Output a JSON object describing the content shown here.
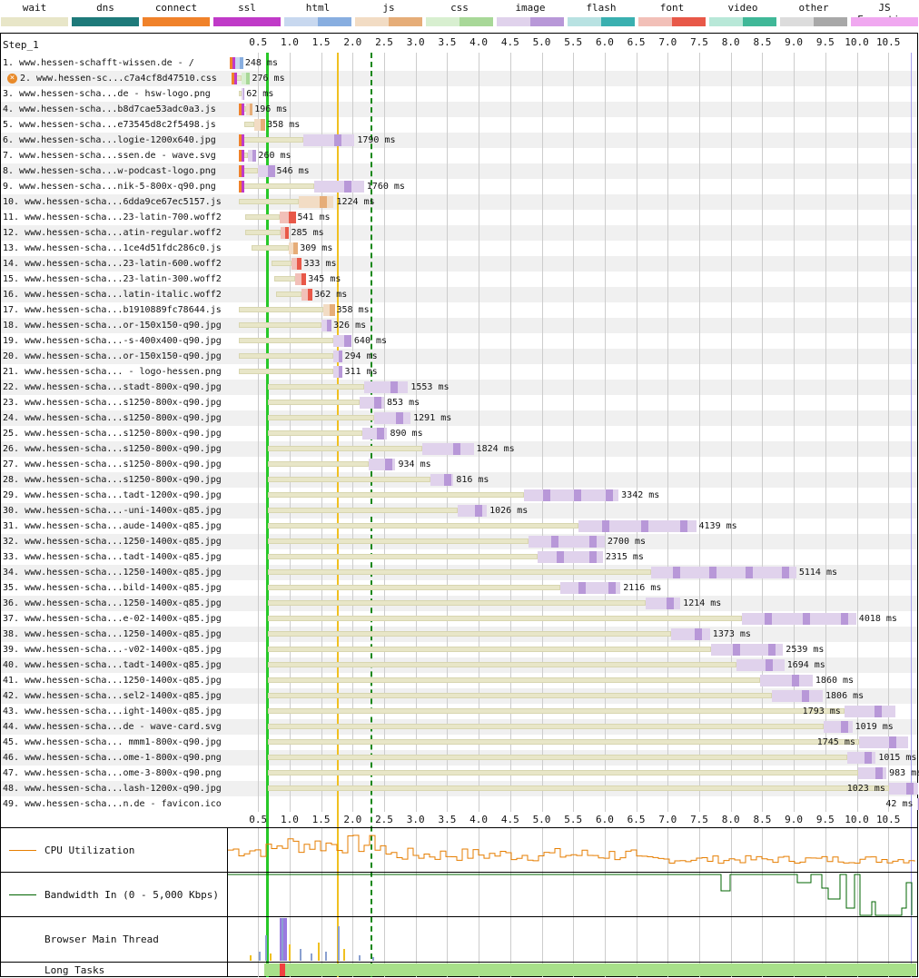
{
  "legend": [
    {
      "label": "wait",
      "color": "#e8e6c8",
      "color2": "#e8e6c8"
    },
    {
      "label": "dns",
      "color": "#1e7a7a",
      "color2": "#1e7a7a"
    },
    {
      "label": "connect",
      "color": "#f0822a",
      "color2": "#f0822a"
    },
    {
      "label": "ssl",
      "color": "#c03ac8",
      "color2": "#c03ac8"
    },
    {
      "label": "html",
      "color": "#c8d8ef",
      "color2": "#88aee0"
    },
    {
      "label": "js",
      "color": "#f2dcc4",
      "color2": "#e6ad78"
    },
    {
      "label": "css",
      "color": "#d8efd0",
      "color2": "#a8d898"
    },
    {
      "label": "image",
      "color": "#e0d2ec",
      "color2": "#b898d8"
    },
    {
      "label": "flash",
      "color": "#b8e2e2",
      "color2": "#3ab0b0"
    },
    {
      "label": "font",
      "color": "#f2c0b8",
      "color2": "#e85848"
    },
    {
      "label": "video",
      "color": "#b8e8d8",
      "color2": "#40b898"
    },
    {
      "label": "other",
      "color": "#dcdcdc",
      "color2": "#a8a8a8"
    },
    {
      "label": "JS Execution",
      "color": "#f0a8f0",
      "color2": "#f0a8f0"
    }
  ],
  "step_label": "Step_1",
  "ticks": [
    "0.5",
    "1.0",
    "1.5",
    "2.0",
    "2.5",
    "3.0",
    "3.5",
    "4.0",
    "4.5",
    "5.0",
    "5.5",
    "6.0",
    "6.5",
    "7.0",
    "7.5",
    "8.0",
    "8.5",
    "9.0",
    "9.5",
    "10.0",
    "10.5"
  ],
  "markers": {
    "start_render": 0.62,
    "dom_content_loaded": 1.75,
    "onload": 2.28
  },
  "requests": [
    {
      "label": "1. www.hessen-schafft-wissen.de - /",
      "type": "html",
      "start": 0.05,
      "conn": 0.08,
      "end": 0.25,
      "ms": "248 ms",
      "icon": false
    },
    {
      "label": "2. www.hessen-sc...c7a4cf8d47510.css",
      "type": "css",
      "start": 0.08,
      "conn": 0.12,
      "end": 0.36,
      "ms": "276 ms",
      "icon": true
    },
    {
      "label": "3. www.hessen-scha...de - hsw-logo.png",
      "type": "image",
      "start": 0.2,
      "conn": 0,
      "end": 0.27,
      "ms": "62 ms",
      "icon": false
    },
    {
      "label": "4. www.hessen-scha...b8d7cae53adc0a3.js",
      "type": "js",
      "start": 0.2,
      "conn": 0.1,
      "end": 0.4,
      "ms": "196 ms",
      "icon": false
    },
    {
      "label": "5. www.hessen-scha...e73545d8c2f5498.js",
      "type": "js",
      "start": 0.28,
      "conn": 0,
      "end": 0.6,
      "ms": "358 ms",
      "icon": false
    },
    {
      "label": "6. www.hessen-scha...logie-1200x640.jpg",
      "type": "image",
      "start": 0.2,
      "conn": 0.1,
      "end": 2.03,
      "ms": "1790 ms",
      "icon": false
    },
    {
      "label": "7. www.hessen-scha...ssen.de - wave.svg",
      "type": "image",
      "start": 0.2,
      "conn": 0.1,
      "end": 0.46,
      "ms": "260 ms",
      "icon": false
    },
    {
      "label": "8. www.hessen-scha...w-podcast-logo.png",
      "type": "image",
      "start": 0.2,
      "conn": 0.1,
      "end": 0.75,
      "ms": "546 ms",
      "icon": false
    },
    {
      "label": "9. www.hessen-scha...nik-5-800x-q90.png",
      "type": "image",
      "start": 0.2,
      "conn": 0.35,
      "end": 2.18,
      "ms": "1760 ms",
      "icon": false
    },
    {
      "label": "10. www.hessen-scha...6dda9ce67ec5157.js",
      "type": "js",
      "start": 0.2,
      "conn": 0,
      "end": 1.7,
      "ms": "1224 ms",
      "icon": false
    },
    {
      "label": "11. www.hessen-scha...23-latin-700.woff2",
      "type": "font",
      "start": 0.3,
      "conn": 0,
      "end": 1.08,
      "ms": "541 ms",
      "icon": false
    },
    {
      "label": "12. www.hessen-scha...atin-regular.woff2",
      "type": "font",
      "start": 0.3,
      "conn": 0,
      "end": 0.98,
      "ms": "285 ms",
      "icon": false
    },
    {
      "label": "13. www.hessen-scha...1ce4d51fdc286c0.js",
      "type": "js",
      "start": 0.4,
      "conn": 0,
      "end": 1.12,
      "ms": "309 ms",
      "icon": false
    },
    {
      "label": "14. www.hessen-scha...23-latin-600.woff2",
      "type": "font",
      "start": 0.72,
      "conn": 0,
      "end": 1.18,
      "ms": "333 ms",
      "icon": false
    },
    {
      "label": "15. www.hessen-scha...23-latin-300.woff2",
      "type": "font",
      "start": 0.75,
      "conn": 0,
      "end": 1.25,
      "ms": "345 ms",
      "icon": false
    },
    {
      "label": "16. www.hessen-scha...latin-italic.woff2",
      "type": "font",
      "start": 0.78,
      "conn": 0,
      "end": 1.35,
      "ms": "362 ms",
      "icon": false
    },
    {
      "label": "17. www.hessen-scha...b1910889fc78644.js",
      "type": "js",
      "start": 0.2,
      "conn": 0,
      "end": 1.7,
      "ms": "358 ms",
      "icon": false
    },
    {
      "label": "18. www.hessen-scha...or-150x150-q90.jpg",
      "type": "image",
      "start": 0.2,
      "conn": 0,
      "end": 1.65,
      "ms": "326 ms",
      "icon": false
    },
    {
      "label": "19. www.hessen-scha...-s-400x400-q90.jpg",
      "type": "image",
      "start": 0.2,
      "conn": 0,
      "end": 1.98,
      "ms": "640 ms",
      "icon": false
    },
    {
      "label": "20. www.hessen-scha...or-150x150-q90.jpg",
      "type": "image",
      "start": 0.2,
      "conn": 0,
      "end": 1.83,
      "ms": "294 ms",
      "icon": false
    },
    {
      "label": "21. www.hessen-scha... - logo-hessen.png",
      "type": "image",
      "start": 0.2,
      "conn": 0,
      "end": 1.83,
      "ms": "311 ms",
      "icon": false
    },
    {
      "label": "22. www.hessen-scha...stadt-800x-q90.jpg",
      "type": "image",
      "start": 0.66,
      "conn": 0,
      "end": 2.88,
      "ms": "1553 ms",
      "icon": false
    },
    {
      "label": "23. www.hessen-scha...s1250-800x-q90.jpg",
      "type": "image",
      "start": 0.66,
      "conn": 0,
      "end": 2.5,
      "ms": "853 ms",
      "icon": false
    },
    {
      "label": "24. www.hessen-scha...s1250-800x-q90.jpg",
      "type": "image",
      "start": 0.66,
      "conn": 0,
      "end": 2.92,
      "ms": "1291 ms",
      "icon": false
    },
    {
      "label": "25. www.hessen-scha...s1250-800x-q90.jpg",
      "type": "image",
      "start": 0.66,
      "conn": 0,
      "end": 2.55,
      "ms": "890 ms",
      "icon": false
    },
    {
      "label": "26. www.hessen-scha...s1250-800x-q90.jpg",
      "type": "image",
      "start": 0.66,
      "conn": 0,
      "end": 3.92,
      "ms": "1824 ms",
      "icon": false
    },
    {
      "label": "27. www.hessen-scha...s1250-800x-q90.jpg",
      "type": "image",
      "start": 0.66,
      "conn": 0,
      "end": 2.68,
      "ms": "934 ms",
      "icon": false
    },
    {
      "label": "28. www.hessen-scha...s1250-800x-q90.jpg",
      "type": "image",
      "start": 0.66,
      "conn": 0,
      "end": 3.6,
      "ms": "816 ms",
      "icon": false
    },
    {
      "label": "29. www.hessen-scha...tadt-1200x-q90.jpg",
      "type": "image",
      "start": 0.66,
      "conn": 0,
      "end": 6.22,
      "ms": "3342 ms",
      "icon": false
    },
    {
      "label": "30. www.hessen-scha...-uni-1400x-q85.jpg",
      "type": "image",
      "start": 0.66,
      "conn": 0,
      "end": 4.13,
      "ms": "1026 ms",
      "icon": false
    },
    {
      "label": "31. www.hessen-scha...aude-1400x-q85.jpg",
      "type": "image",
      "start": 0.66,
      "conn": 0,
      "end": 7.45,
      "ms": "4139 ms",
      "icon": false
    },
    {
      "label": "32. www.hessen-scha...1250-1400x-q85.jpg",
      "type": "image",
      "start": 0.66,
      "conn": 0,
      "end": 6.0,
      "ms": "2700 ms",
      "icon": false
    },
    {
      "label": "33. www.hessen-scha...tadt-1400x-q85.jpg",
      "type": "image",
      "start": 0.66,
      "conn": 0,
      "end": 5.97,
      "ms": "2315 ms",
      "icon": false
    },
    {
      "label": "34. www.hessen-scha...1250-1400x-q85.jpg",
      "type": "image",
      "start": 0.66,
      "conn": 0,
      "end": 9.04,
      "ms": "5114 ms",
      "icon": false
    },
    {
      "label": "35. www.hessen-scha...bild-1400x-q85.jpg",
      "type": "image",
      "start": 0.66,
      "conn": 0,
      "end": 6.25,
      "ms": "2116 ms",
      "icon": false
    },
    {
      "label": "36. www.hessen-scha...1250-1400x-q85.jpg",
      "type": "image",
      "start": 0.66,
      "conn": 0,
      "end": 7.2,
      "ms": "1214 ms",
      "icon": false
    },
    {
      "label": "37. www.hessen-scha...e-02-1400x-q85.jpg",
      "type": "image",
      "start": 0.66,
      "conn": 0,
      "end": 9.99,
      "ms": "4018 ms",
      "icon": false
    },
    {
      "label": "38. www.hessen-scha...1250-1400x-q85.jpg",
      "type": "image",
      "start": 0.66,
      "conn": 0,
      "end": 7.67,
      "ms": "1373 ms",
      "icon": false
    },
    {
      "label": "39. www.hessen-scha...-v02-1400x-q85.jpg",
      "type": "image",
      "start": 0.66,
      "conn": 0,
      "end": 8.83,
      "ms": "2539 ms",
      "icon": false
    },
    {
      "label": "40. www.hessen-scha...tadt-1400x-q85.jpg",
      "type": "image",
      "start": 0.66,
      "conn": 0,
      "end": 8.85,
      "ms": "1694 ms",
      "icon": false
    },
    {
      "label": "41. www.hessen-scha...1250-1400x-q85.jpg",
      "type": "image",
      "start": 0.66,
      "conn": 0,
      "end": 9.3,
      "ms": "1860 ms",
      "icon": false
    },
    {
      "label": "42. www.hessen-scha...sel2-1400x-q85.jpg",
      "type": "image",
      "start": 0.66,
      "conn": 0,
      "end": 9.46,
      "ms": "1806 ms",
      "icon": false
    },
    {
      "label": "43. www.hessen-scha...ight-1400x-q85.jpg",
      "type": "image",
      "start": 0.66,
      "conn": 0,
      "end": 10.61,
      "ms": "1793 ms",
      "icon": false,
      "ms_left": true
    },
    {
      "label": "44. www.hessen-scha...de - wave-card.svg",
      "type": "image",
      "start": 0.66,
      "conn": 0,
      "end": 9.93,
      "ms": "1019 ms",
      "icon": false
    },
    {
      "label": "45. www.hessen-scha... mmm1-800x-q90.jpg",
      "type": "image",
      "start": 0.66,
      "conn": 0,
      "end": 10.82,
      "ms": "1745 ms",
      "icon": false,
      "ms_left": true
    },
    {
      "label": "46. www.hessen-scha...ome-1-800x-q90.png",
      "type": "image",
      "start": 0.66,
      "conn": 0,
      "end": 10.3,
      "ms": "1015 ms",
      "icon": false
    },
    {
      "label": "47. www.hessen-scha...ome-3-800x-q90.png",
      "type": "image",
      "start": 0.66,
      "conn": 0,
      "end": 10.47,
      "ms": "983 ms",
      "icon": false
    },
    {
      "label": "48. www.hessen-scha...lash-1200x-q90.jpg",
      "type": "image",
      "start": 0.66,
      "conn": 0,
      "end": 10.97,
      "ms": "1023 ms",
      "icon": false,
      "ms_left": true
    },
    {
      "label": "49. www.hessen-scha...n.de - favicon.ico",
      "type": "image",
      "start": 0.66,
      "conn": 0,
      "end": 10.97,
      "ms": "42 ms",
      "icon": false,
      "ms_left": true,
      "tiny": true
    }
  ],
  "graphs": {
    "cpu_label": "CPU Utilization",
    "bandwidth_label": "Bandwidth In (0 - 5,000 Kbps)",
    "main_thread_label": "Browser Main Thread",
    "long_tasks_label": "Long Tasks",
    "cpu_color": "#e67e00",
    "bandwidth_color": "#006400"
  }
}
